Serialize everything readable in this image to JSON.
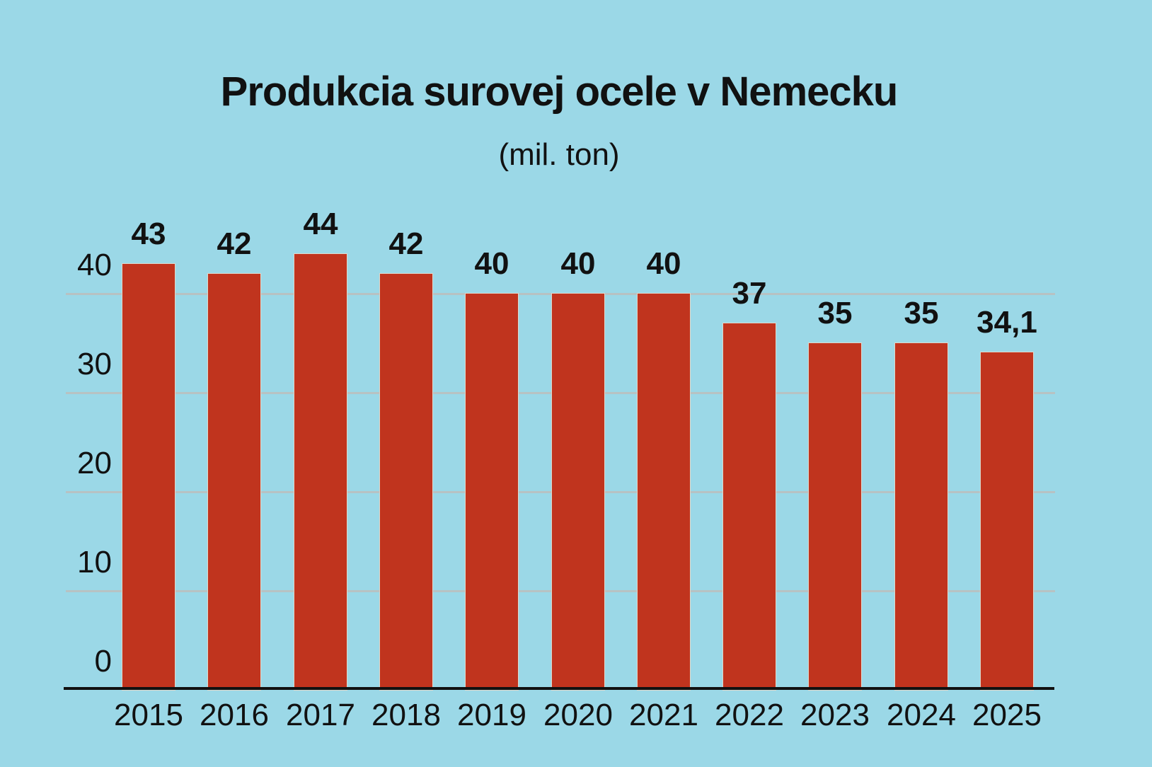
{
  "chart_data": {
    "type": "bar",
    "title": "Produkcia surovej ocele v Nemecku",
    "subtitle": "(mil. ton)",
    "categories": [
      "2015",
      "2016",
      "2017",
      "2018",
      "2019",
      "2020",
      "2021",
      "2022",
      "2023",
      "2024",
      "2025"
    ],
    "values": [
      43,
      42,
      44,
      42,
      40,
      40,
      40,
      37,
      35,
      35,
      34.1
    ],
    "value_labels": [
      "43",
      "42",
      "44",
      "42",
      "40",
      "40",
      "40",
      "37",
      "35",
      "35",
      "34,1"
    ],
    "xlabel": "",
    "ylabel": "",
    "yticks": [
      0,
      10,
      20,
      30,
      40
    ],
    "ytick_labels": [
      "0",
      "10",
      "20",
      "30",
      "40"
    ],
    "ylim": [
      0,
      45
    ],
    "grid": "horizontal",
    "legend": "none"
  },
  "colors": {
    "background": "#9bd8e7",
    "bar": "#c0341e",
    "bar_edge": "#ded8cb",
    "gridline": "#b7c2c3",
    "axis": "#111111",
    "text": "#111111"
  }
}
